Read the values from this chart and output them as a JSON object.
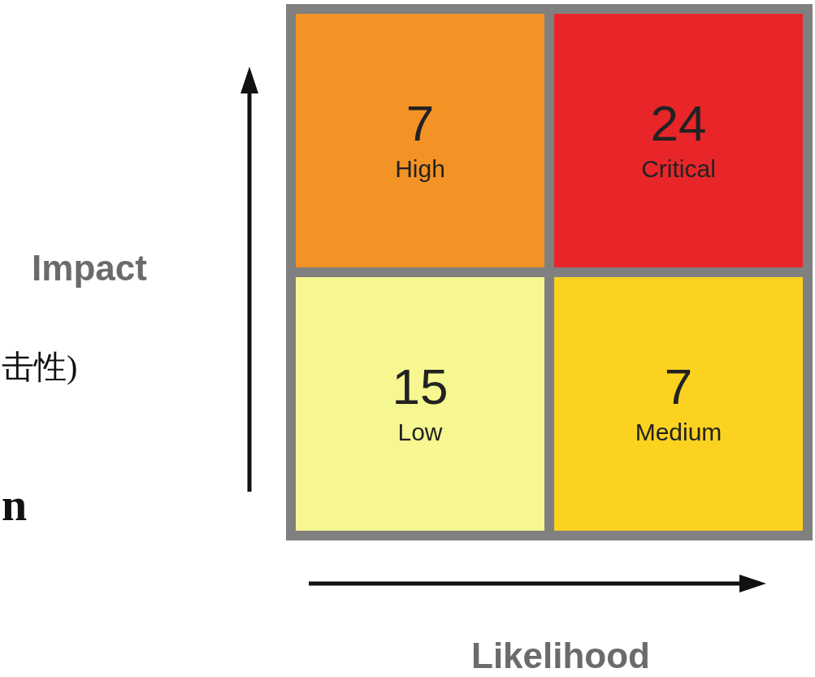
{
  "chart_data": {
    "type": "heatmap",
    "xlabel": "Likelihood",
    "ylabel": "Impact",
    "categories": [
      null,
      null
    ],
    "y_categories": [
      null,
      null
    ],
    "cells": [
      [
        7,
        24
      ],
      [
        15,
        7
      ]
    ],
    "data_labels": true,
    "colors": [
      "#f39325",
      "#e8262a",
      "#f6f791",
      "#fbd21f"
    ],
    "annotations": [
      "High",
      "Critical",
      "Low",
      "Medium",
      "击性)",
      "n"
    ]
  }
}
